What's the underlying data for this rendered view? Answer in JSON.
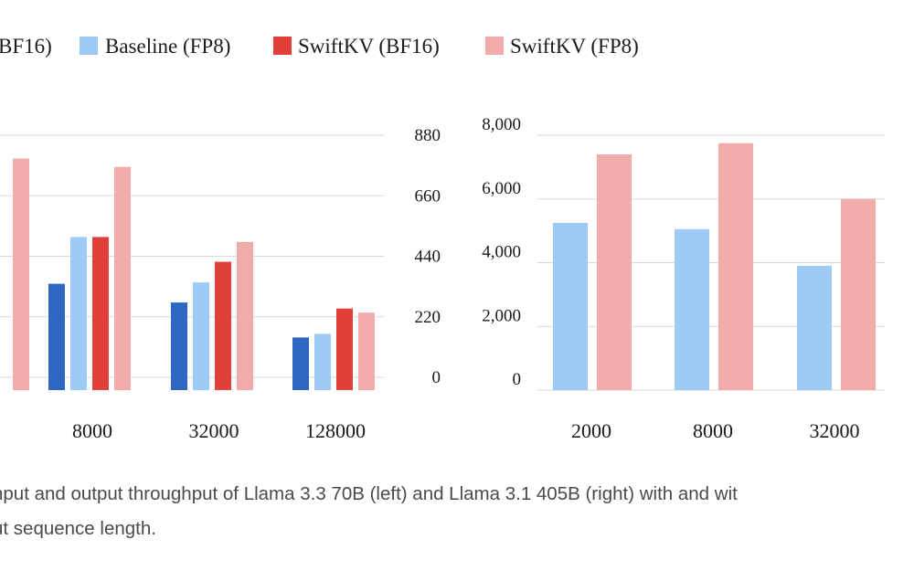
{
  "legend": [
    {
      "label": "BF16)",
      "color": "#2f66c2"
    },
    {
      "label": "Baseline (FP8)",
      "color": "#9dcbf5"
    },
    {
      "label": "SwiftKV (BF16)",
      "color": "#e0403a"
    },
    {
      "label": "SwiftKV (FP8)",
      "color": "#f2abab"
    }
  ],
  "caption": {
    "line1": "nput and output throughput of Llama 3.3 70B (left) and Llama 3.1 405B (right) with and wit",
    "line2": "ut sequence length."
  },
  "chart_data": [
    {
      "type": "bar",
      "title": "",
      "categories": [
        "",
        "8000",
        "32000",
        "128000"
      ],
      "ylim": [
        0,
        880
      ],
      "yticks": [
        "0",
        "220",
        "440",
        "660",
        "880"
      ],
      "grid": true,
      "series": [
        {
          "name": "BF16)",
          "color": "#2f66c2",
          "values": [
            null,
            340,
            272,
            145
          ]
        },
        {
          "name": "Baseline (FP8)",
          "color": "#9dcbf5",
          "values": [
            null,
            510,
            345,
            158
          ]
        },
        {
          "name": "SwiftKV (BF16)",
          "color": "#e0403a",
          "values": [
            null,
            510,
            420,
            250
          ]
        },
        {
          "name": "SwiftKV (FP8)",
          "color": "#f2abab",
          "values": [
            795,
            765,
            492,
            235
          ]
        }
      ]
    },
    {
      "type": "bar",
      "title": "",
      "categories": [
        "2000",
        "8000",
        "32000"
      ],
      "ylim": [
        0,
        8000
      ],
      "yticks": [
        "0",
        "2,000",
        "4,000",
        "6,000",
        "8,000"
      ],
      "grid": true,
      "series": [
        {
          "name": "Baseline (FP8)",
          "color": "#9dcbf5",
          "values": [
            5250,
            5050,
            3900
          ]
        },
        {
          "name": "SwiftKV (FP8)",
          "color": "#f2abab",
          "values": [
            7400,
            7750,
            6000
          ]
        }
      ]
    }
  ]
}
